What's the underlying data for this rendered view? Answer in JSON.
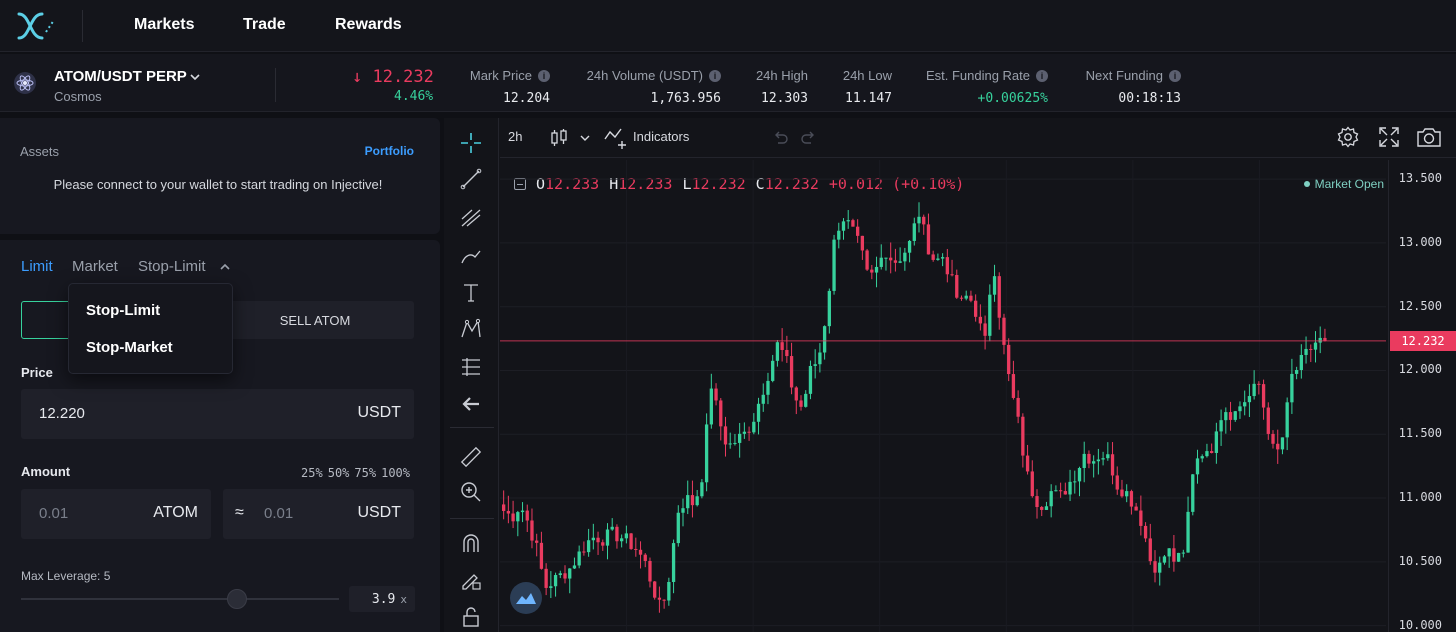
{
  "nav": {
    "items": [
      "Markets",
      "Trade",
      "Rewards"
    ]
  },
  "market": {
    "pair": "ATOM/USDT PERP",
    "subtitle": "Cosmos",
    "last_price": "↓ 12.232",
    "change": "4.46%",
    "stats": [
      {
        "label": "Mark Price",
        "value": "12.204",
        "info": true,
        "color": "#e8eaee"
      },
      {
        "label": "24h Volume (USDT)",
        "value": "1,763.956",
        "info": true,
        "color": "#e8eaee"
      },
      {
        "label": "24h High",
        "value": "12.303",
        "info": false,
        "color": "#e8eaee"
      },
      {
        "label": "24h Low",
        "value": "11.147",
        "info": false,
        "color": "#e8eaee"
      },
      {
        "label": "Est. Funding Rate",
        "value": "+0.00625%",
        "info": true,
        "color": "#37d29d"
      },
      {
        "label": "Next Funding",
        "value": "00:18:13",
        "info": true,
        "color": "#e8eaee"
      }
    ]
  },
  "assets": {
    "title": "Assets",
    "portfolio_link": "Portfolio",
    "message": "Please connect to your wallet to start trading on Injective!"
  },
  "order": {
    "tabs": [
      "Limit",
      "Market",
      "Stop-Limit"
    ],
    "buy_label": "",
    "sell_label": "SELL ATOM",
    "price_label": "Price",
    "price_value": "12.220",
    "price_unit": "USDT",
    "amount_label": "Amount",
    "percentages": [
      "25%",
      "50%",
      "75%",
      "100%"
    ],
    "amount_placeholder": "0.01",
    "amount_unit": "ATOM",
    "approx_symbol": "≈",
    "total_placeholder": "0.01",
    "total_unit": "USDT",
    "leverage_label": "Max Leverage: 5",
    "leverage_value": "3.9",
    "leverage_suffix": "x",
    "leverage_fraction": 0.68
  },
  "dropdown": {
    "items": [
      "Stop-Limit",
      "Stop-Market"
    ]
  },
  "chart_toolbar": {
    "interval": "2h",
    "indicators_label": "Indicators"
  },
  "chart": {
    "ohlc": [
      {
        "k": "O",
        "v": "12.233"
      },
      {
        "k": "H",
        "v": "12.233"
      },
      {
        "k": "L",
        "v": "12.232"
      },
      {
        "k": "C",
        "v": "12.232"
      }
    ],
    "change_text": "+0.012 (+0.10%)",
    "status": "Market Open",
    "last_price_tag": "12.232",
    "up_color": "#37d29d",
    "down_color": "#ea3b5f"
  },
  "chart_data": {
    "type": "candlestick",
    "y_ticks": [
      "13.500",
      "13.000",
      "12.500",
      "12.000",
      "11.500",
      "11.000",
      "10.500",
      "10.000"
    ],
    "ylim": [
      9.95,
      13.65
    ],
    "last_price": 12.232,
    "close_series": [
      10.9,
      10.85,
      10.95,
      10.8,
      10.6,
      10.3,
      10.35,
      10.4,
      10.45,
      10.55,
      10.65,
      10.7,
      10.68,
      10.72,
      10.7,
      10.66,
      10.6,
      10.5,
      10.3,
      10.1,
      10.4,
      10.9,
      11.0,
      10.95,
      11.2,
      11.9,
      11.6,
      11.4,
      11.45,
      11.5,
      11.6,
      11.8,
      12.0,
      12.2,
      12.1,
      11.8,
      11.7,
      12.0,
      12.1,
      12.5,
      13.1,
      13.2,
      13.1,
      12.95,
      12.7,
      12.8,
      12.95,
      12.85,
      12.9,
      13.0,
      13.25,
      13.0,
      12.85,
      12.9,
      12.7,
      12.5,
      12.6,
      12.45,
      12.2,
      12.9,
      12.3,
      11.9,
      11.6,
      11.2,
      11.0,
      10.95,
      11.05,
      11.0,
      11.1,
      11.2,
      11.35,
      11.3,
      11.35,
      11.3,
      11.1,
      11.05,
      10.95,
      10.8,
      10.5,
      10.45,
      10.6,
      10.5,
      10.55,
      11.2,
      11.4,
      11.3,
      11.6,
      11.7,
      11.65,
      11.75,
      11.8,
      11.9,
      11.6,
      11.3,
      11.5,
      11.95,
      12.05,
      12.15,
      12.23,
      12.232
    ]
  }
}
